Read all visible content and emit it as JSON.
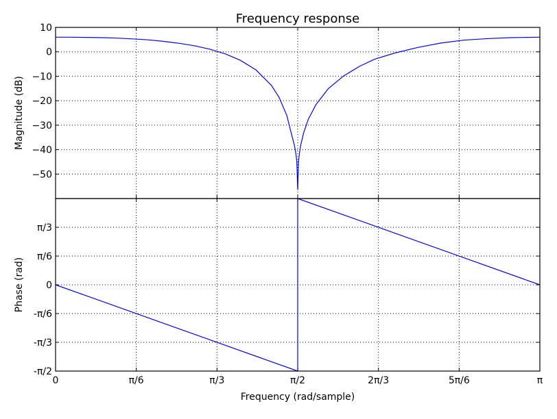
{
  "chart_data": [
    {
      "type": "line",
      "title": "Frequency response",
      "ylabel": "Magnitude (dB)",
      "xlim": [
        0,
        3.14159
      ],
      "ylim": [
        -60,
        10
      ],
      "grid": true,
      "x_ticks": [
        0,
        0.5236,
        1.0472,
        1.5708,
        2.0944,
        2.618,
        3.14159
      ],
      "y_ticks": [
        10,
        0,
        -10,
        -20,
        -30,
        -40,
        -50
      ],
      "y_tick_labels": [
        "10",
        "0",
        "−10",
        "−20",
        "−30",
        "−40",
        "−50"
      ],
      "series": [
        {
          "color": "#0000ff",
          "x": [
            0,
            0.1,
            0.2,
            0.3,
            0.4,
            0.5,
            0.6,
            0.7,
            0.8,
            0.9,
            1.0,
            1.1,
            1.2,
            1.3,
            1.4,
            1.45,
            1.5,
            1.53,
            1.55,
            1.56,
            1.565,
            1.5708,
            1.576,
            1.581,
            1.59,
            1.61,
            1.64,
            1.69,
            1.77,
            1.87,
            1.97,
            2.07,
            2.2,
            2.35,
            2.5,
            2.65,
            2.8,
            2.95,
            3.05,
            3.14159
          ],
          "y": [
            6.0,
            6.0,
            5.9,
            5.8,
            5.6,
            5.3,
            4.9,
            4.3,
            3.5,
            2.5,
            1.1,
            -0.8,
            -3.5,
            -7.4,
            -13.7,
            -18.6,
            -26.0,
            -33.5,
            -38.4,
            -42.0,
            -45.0,
            -56.5,
            -45.0,
            -42.0,
            -38.2,
            -33.0,
            -27.5,
            -21.5,
            -15.0,
            -9.8,
            -6.0,
            -3.0,
            -0.5,
            1.8,
            3.6,
            4.8,
            5.4,
            5.8,
            5.9,
            6.0
          ]
        }
      ]
    },
    {
      "type": "line",
      "ylabel": "Phase (rad)",
      "xlabel": "Frequency (rad/sample)",
      "xlim": [
        0,
        3.14159
      ],
      "ylim": [
        -1.5708,
        1.5708
      ],
      "grid": true,
      "x_ticks": [
        0,
        0.5236,
        1.0472,
        1.5708,
        2.0944,
        2.618,
        3.14159
      ],
      "x_tick_labels": [
        "0",
        "π/6",
        "π/3",
        "π/2",
        "2π/3",
        "5π/6",
        "π"
      ],
      "y_ticks": [
        1.0472,
        0.5236,
        0,
        -0.5236,
        -1.0472,
        -1.5708
      ],
      "y_tick_labels": [
        "π/3",
        "π/6",
        "0",
        "-π/6",
        "-π/3",
        "-π/2"
      ],
      "series": [
        {
          "color": "#0000ff",
          "x": [
            0,
            1.5708,
            1.5708,
            3.14159
          ],
          "y": [
            0,
            -1.5708,
            1.5708,
            0
          ]
        }
      ]
    }
  ]
}
